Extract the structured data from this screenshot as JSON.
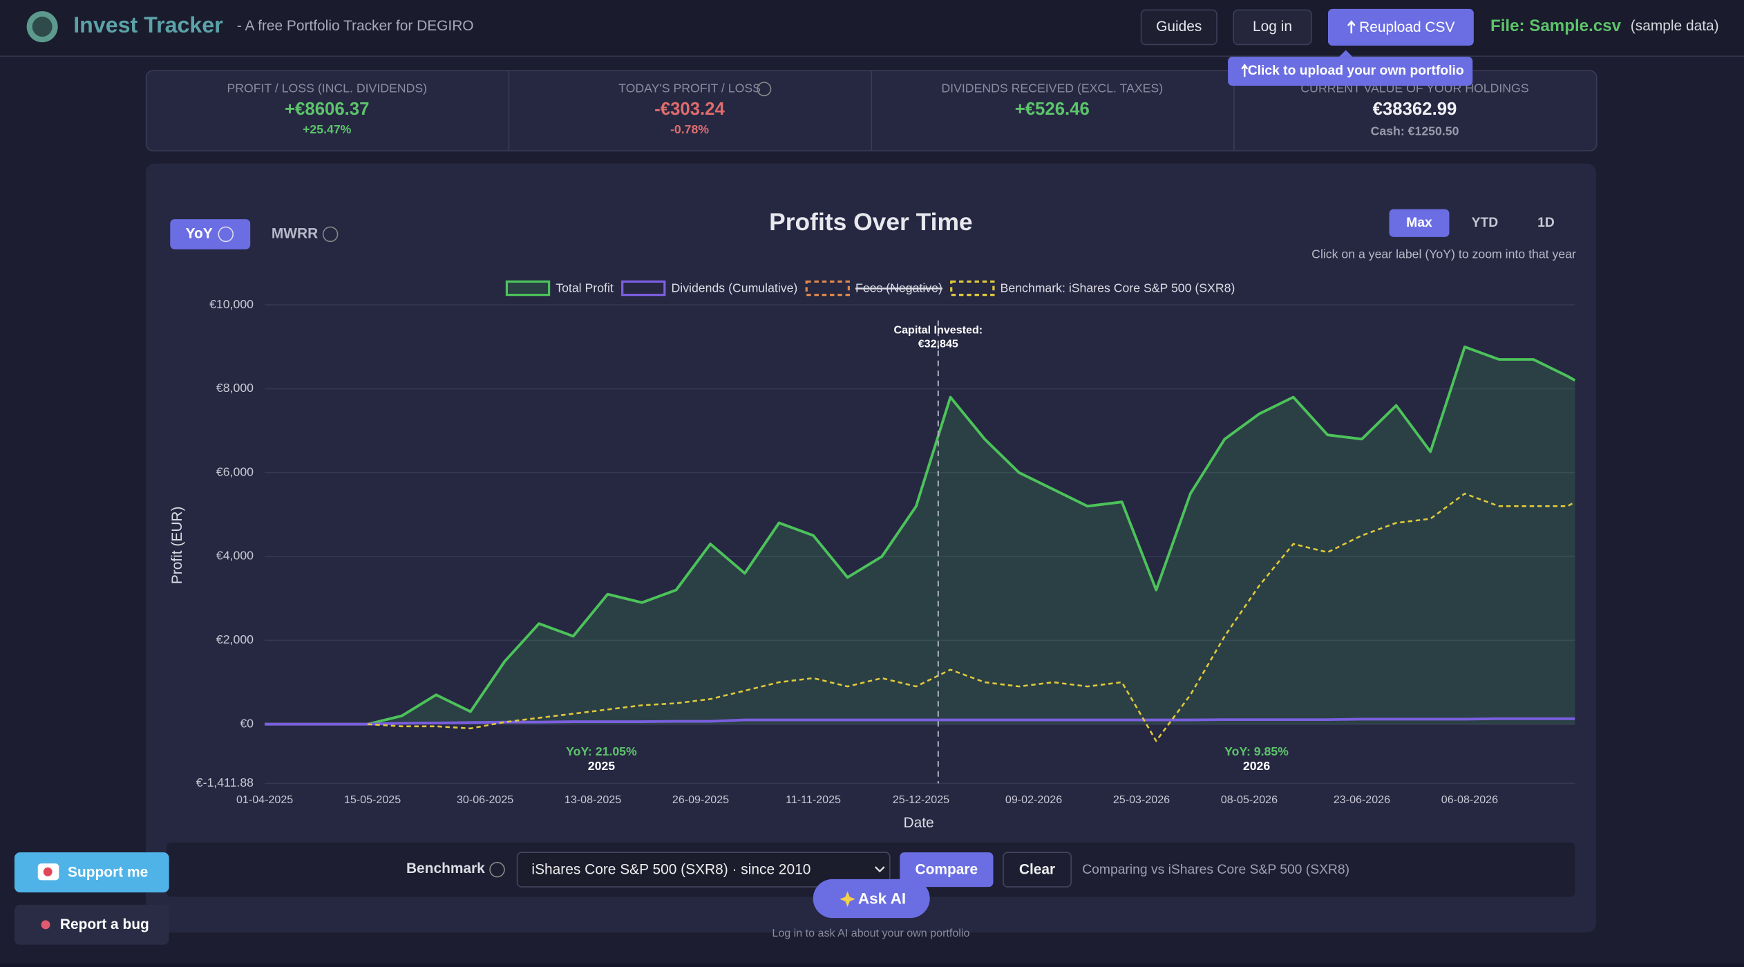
{
  "header": {
    "title": "Invest Tracker",
    "subtitle": "- A free Portfolio Tracker for DEGIRO",
    "buttons": [
      "Guides",
      "Log in",
      "Reupload CSV"
    ],
    "file": "File: Sample.csv",
    "file_note": "(sample data)",
    "tooltip": "Click to upload your own portfolio"
  },
  "stats": [
    {
      "label": "PROFIT / LOSS (INCL. DIVIDENDS)",
      "value": "+€8606.37",
      "sub": "+25.47%",
      "color": "#5cc46a"
    },
    {
      "label": "TODAY'S PROFIT / LOSS",
      "value": "-€303.24",
      "sub": "-0.78%",
      "color": "#e06c6c"
    },
    {
      "label": "DIVIDENDS RECEIVED (EXCL. TAXES)",
      "value": "+€526.46",
      "color": "#5cc46a"
    },
    {
      "label": "CURRENT VALUE OF YOUR HOLDINGS",
      "value": "€38362.99",
      "sub": "Cash: €1250.50",
      "color": "#f0f0f5"
    }
  ],
  "chart_controls": {
    "modes": [
      "YoY",
      "MWRR"
    ],
    "ranges": [
      "Max",
      "YTD",
      "1D"
    ],
    "hint": "Click on a year label (YoY) to zoom into that year"
  },
  "chart_data": {
    "type": "line",
    "title": "Profits Over Time",
    "x_label": "Date",
    "y_label": "Profit (EUR)",
    "x": [
      "01-04-2025",
      "15-04-2025",
      "29-04-2025",
      "13-05-2025",
      "27-05-2025",
      "10-06-2025",
      "24-06-2025",
      "08-07-2025",
      "22-07-2025",
      "05-08-2025",
      "19-08-2025",
      "02-09-2025",
      "16-09-2025",
      "30-09-2025",
      "14-10-2025",
      "28-10-2025",
      "11-11-2025",
      "25-11-2025",
      "09-12-2025",
      "23-12-2025",
      "06-01-2026",
      "20-01-2026",
      "03-02-2026",
      "17-02-2026",
      "03-03-2026",
      "17-03-2026",
      "31-03-2026",
      "14-04-2026",
      "28-04-2026",
      "12-05-2026",
      "26-05-2026",
      "09-06-2026",
      "23-06-2026",
      "07-07-2026",
      "21-07-2026",
      "04-08-2026",
      "18-08-2026",
      "01-09-2026",
      "15-09-2026",
      "18-09-2026"
    ],
    "series": [
      {
        "name": "Total Profit",
        "color": "#4cc35a",
        "fill": true,
        "values": [
          0,
          0,
          0,
          0,
          200,
          700,
          300,
          1500,
          2400,
          2100,
          3100,
          2900,
          3200,
          4300,
          3600,
          4800,
          4500,
          3500,
          4000,
          5200,
          7800,
          6800,
          6000,
          5600,
          5200,
          5300,
          3200,
          5500,
          6800,
          7400,
          7800,
          6900,
          6800,
          7600,
          6500,
          9000,
          8700,
          8700,
          8300,
          8200
        ]
      },
      {
        "name": "Dividends (Cumulative)",
        "color": "#7b5fe0",
        "values": [
          0,
          0,
          0,
          0,
          20,
          30,
          40,
          50,
          50,
          60,
          60,
          60,
          70,
          70,
          100,
          100,
          100,
          100,
          100,
          100,
          100,
          100,
          100,
          100,
          100,
          100,
          100,
          100,
          110,
          110,
          110,
          110,
          120,
          120,
          120,
          120,
          130,
          130,
          130,
          130
        ]
      },
      {
        "name": "Fees (Negative)",
        "color": "#e0884a",
        "dashed": true,
        "hidden": true
      },
      {
        "name": "Benchmark: iShares Core S&P 500 (SXR8)",
        "color": "#e0c93a",
        "dashed": true,
        "values": [
          null,
          null,
          null,
          0,
          -50,
          -50,
          -100,
          50,
          150,
          250,
          350,
          450,
          500,
          600,
          800,
          1000,
          1100,
          900,
          1100,
          900,
          1300,
          1000,
          900,
          1000,
          900,
          1000,
          -400,
          700,
          2100,
          3300,
          4300,
          4100,
          4500,
          4800,
          4900,
          5500,
          5200,
          5200,
          5200,
          5300
        ]
      }
    ],
    "xlim": [
      "01-04-2025",
      "18-09-2026"
    ],
    "xticks": [
      "01-04-2025",
      "15-05-2025",
      "30-06-2025",
      "13-08-2025",
      "26-09-2025",
      "11-11-2025",
      "25-12-2025",
      "09-02-2026",
      "25-03-2026",
      "08-05-2026",
      "23-06-2026",
      "06-08-2026"
    ],
    "ylim": [
      -1411.88,
      10000
    ],
    "yticks": [
      {
        "value": -1411.88,
        "label": "€-1,411.88"
      },
      {
        "value": 0,
        "label": "€0"
      },
      {
        "value": 2000,
        "label": "€2,000"
      },
      {
        "value": 4000,
        "label": "€4,000"
      },
      {
        "value": 6000,
        "label": "€6,000"
      },
      {
        "value": 8000,
        "label": "€8,000"
      },
      {
        "value": 10000,
        "label": "€10,000"
      }
    ],
    "grid": true,
    "legend": "top",
    "annotations": [
      {
        "x": "01-01-2026",
        "text": "Capital Invested:",
        "value_text": "€32,845"
      }
    ],
    "year_labels": [
      {
        "label": "YoY: 21.05%",
        "year": "2025"
      },
      {
        "label": "YoY: 9.85%",
        "year": "2026"
      }
    ]
  },
  "benchmark_bar": {
    "label": "Benchmark",
    "selected": "iShares Core S&P 500 (SXR8) · since 2010",
    "buttons": [
      "Compare",
      "Clear"
    ],
    "status": "Comparing vs iShares Core S&P 500 (SXR8)"
  },
  "ai": {
    "button": "Ask AI",
    "note": "Log in to ask AI about your own portfolio"
  },
  "side_buttons": [
    "Support me",
    "Report a bug"
  ]
}
